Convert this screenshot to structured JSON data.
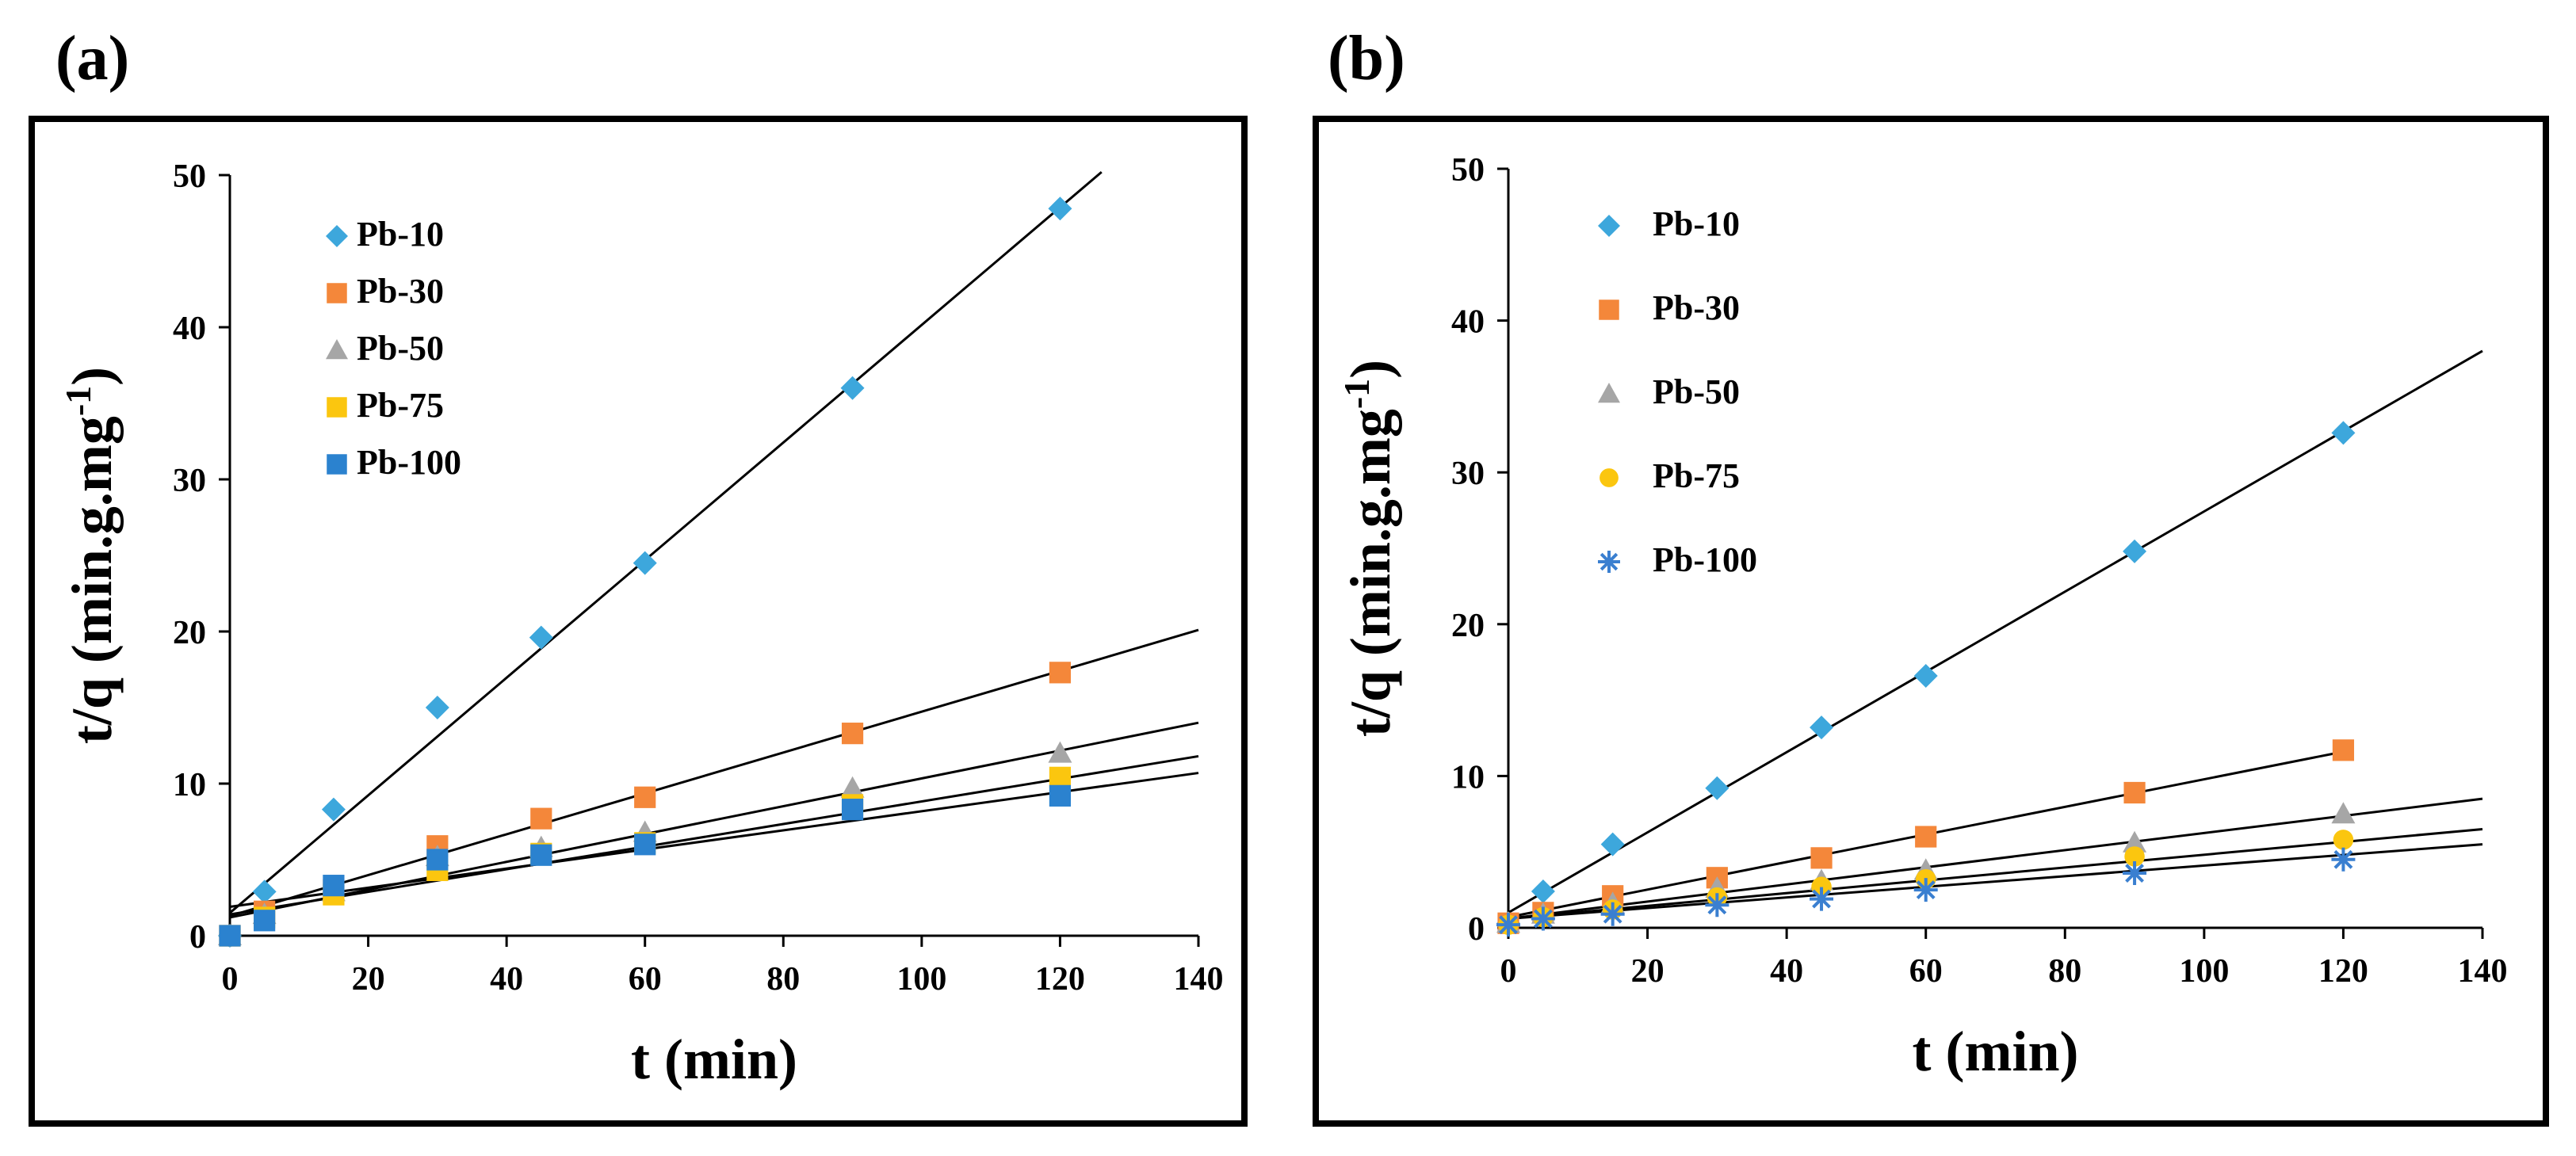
{
  "chart_data": [
    {
      "panel_label": "(a)",
      "type": "scatter",
      "xlabel": "t (min)",
      "ylabel": "t/q (min.g.mg",
      "ylabel_sup": "-1",
      "ylabel_close": ")",
      "xlim": [
        0,
        140
      ],
      "ylim": [
        0,
        50
      ],
      "xticks": [
        0,
        20,
        40,
        60,
        80,
        100,
        120,
        140
      ],
      "yticks": [
        0,
        10,
        20,
        30,
        40,
        50
      ],
      "grid": false,
      "legend_position": "top-left",
      "series": [
        {
          "name": "Pb-10",
          "marker": "diamond",
          "color": "#3da7dc",
          "x": [
            0,
            5,
            15,
            30,
            45,
            60,
            90,
            120
          ],
          "y": [
            0,
            2.9,
            8.3,
            15.0,
            19.6,
            24.5,
            36.0,
            47.8
          ],
          "fit": [
            [
              0,
              1.5
            ],
            [
              126,
              50.2
            ]
          ]
        },
        {
          "name": "Pb-30",
          "marker": "square",
          "color": "#f4873a",
          "x": [
            0,
            5,
            15,
            30,
            45,
            60,
            90,
            120
          ],
          "y": [
            0,
            1.6,
            3.0,
            5.9,
            7.7,
            9.1,
            13.3,
            17.3
          ],
          "fit": [
            [
              0,
              1.3
            ],
            [
              140,
              20.1
            ]
          ]
        },
        {
          "name": "Pb-50",
          "marker": "triangle",
          "color": "#a6a6a6",
          "x": [
            0,
            5,
            15,
            30,
            45,
            60,
            90,
            120
          ],
          "y": [
            0,
            1.4,
            2.9,
            5.2,
            5.8,
            6.8,
            9.7,
            12.0
          ],
          "fit": [
            [
              0,
              1.2
            ],
            [
              140,
              14.0
            ]
          ]
        },
        {
          "name": "Pb-75",
          "marker": "square",
          "color": "#fbc60f",
          "x": [
            0,
            5,
            15,
            30,
            45,
            60,
            90,
            120
          ],
          "y": [
            0,
            1.2,
            2.7,
            4.3,
            5.4,
            6.1,
            8.6,
            10.4
          ],
          "fit": [
            [
              0,
              1.4
            ],
            [
              140,
              11.8
            ]
          ]
        },
        {
          "name": "Pb-100",
          "marker": "square",
          "color": "#2b82cf",
          "x": [
            0,
            5,
            15,
            30,
            45,
            60,
            90,
            120
          ],
          "y": [
            0,
            1.0,
            3.3,
            5.0,
            5.3,
            6.0,
            8.3,
            9.2
          ],
          "fit": [
            [
              0,
              1.9
            ],
            [
              140,
              10.7
            ]
          ]
        }
      ]
    },
    {
      "panel_label": "(b)",
      "type": "scatter",
      "xlabel": "t (min)",
      "ylabel": "t/q (min.g.mg",
      "ylabel_sup": "-1",
      "ylabel_close": ")",
      "xlim": [
        0,
        140
      ],
      "ylim": [
        0,
        50
      ],
      "xticks": [
        0,
        20,
        40,
        60,
        80,
        100,
        120,
        140
      ],
      "yticks": [
        0,
        10,
        20,
        30,
        40,
        50
      ],
      "grid": false,
      "legend_position": "top-left",
      "series": [
        {
          "name": "Pb-10",
          "marker": "diamond",
          "color": "#3da7dc",
          "x": [
            0,
            5,
            15,
            30,
            45,
            60,
            90,
            120
          ],
          "y": [
            0.3,
            2.4,
            5.5,
            9.2,
            13.2,
            16.6,
            24.8,
            32.6
          ],
          "fit": [
            [
              0,
              1.0
            ],
            [
              140,
              38.0
            ]
          ]
        },
        {
          "name": "Pb-30",
          "marker": "square",
          "color": "#f4873a",
          "x": [
            0,
            5,
            15,
            30,
            45,
            60,
            90,
            120
          ],
          "y": [
            0.3,
            1.0,
            2.1,
            3.3,
            4.6,
            6.0,
            8.9,
            11.7
          ],
          "fit": [
            [
              0,
              0.7
            ],
            [
              120,
              11.6
            ]
          ]
        },
        {
          "name": "Pb-50",
          "marker": "triangle",
          "color": "#a6a6a6",
          "x": [
            0,
            5,
            15,
            30,
            45,
            60,
            90,
            120
          ],
          "y": [
            0.3,
            0.9,
            1.6,
            2.6,
            3.1,
            3.8,
            5.6,
            7.5
          ],
          "fit": [
            [
              0,
              0.6
            ],
            [
              140,
              8.5
            ]
          ]
        },
        {
          "name": "Pb-75",
          "marker": "circle",
          "color": "#fbc60f",
          "x": [
            0,
            5,
            15,
            30,
            45,
            60,
            90,
            120
          ],
          "y": [
            0.2,
            0.7,
            1.2,
            2.0,
            2.7,
            3.2,
            4.7,
            5.8
          ],
          "fit": [
            [
              0,
              0.6
            ],
            [
              140,
              6.5
            ]
          ]
        },
        {
          "name": "Pb-100",
          "marker": "star",
          "color": "#3a7fd0",
          "x": [
            0,
            5,
            15,
            30,
            45,
            60,
            90,
            120
          ],
          "y": [
            0.2,
            0.6,
            0.9,
            1.5,
            1.9,
            2.5,
            3.6,
            4.5
          ],
          "fit": [
            [
              0,
              0.6
            ],
            [
              140,
              5.5
            ]
          ]
        }
      ]
    }
  ]
}
